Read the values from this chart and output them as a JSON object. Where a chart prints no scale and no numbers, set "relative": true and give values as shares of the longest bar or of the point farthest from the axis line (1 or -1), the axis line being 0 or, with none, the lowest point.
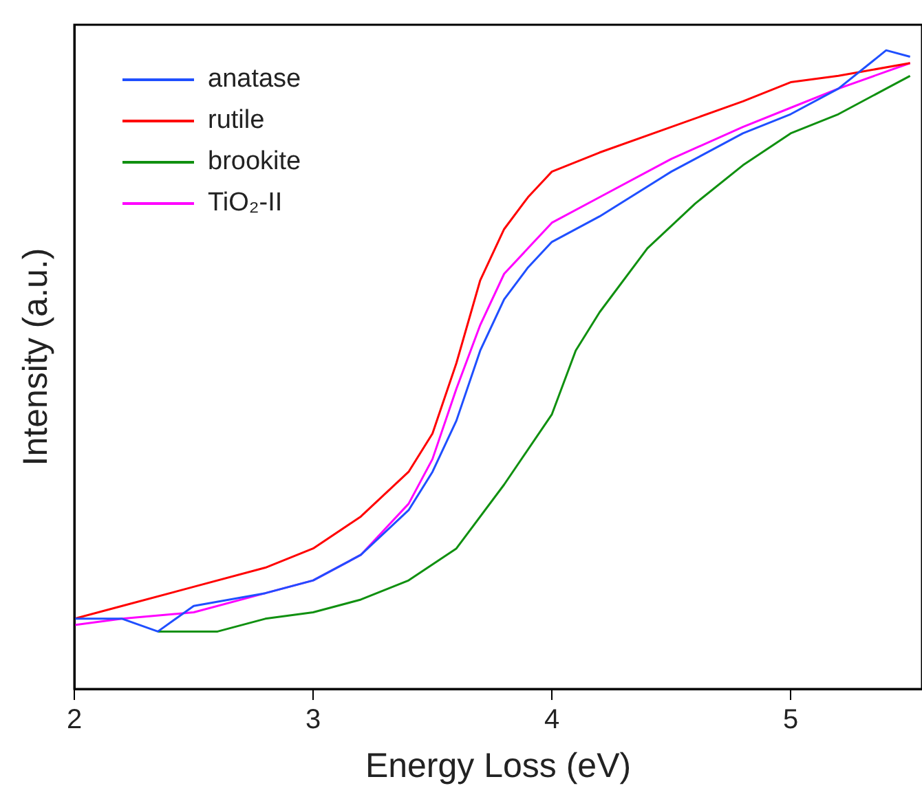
{
  "chart_data": {
    "type": "line",
    "xlabel": "Energy Loss (eV)",
    "ylabel": "Intensity (a.u.)",
    "relative": true,
    "xlim": [
      2,
      5.55
    ],
    "xticks": [
      2,
      3,
      4,
      5
    ],
    "legend": "top left",
    "grid": false,
    "marker": "none",
    "line_style": "solid",
    "series": [
      {
        "name": "anatase",
        "color": "#1f4fff",
        "x": [
          2,
          2.2,
          2.35,
          2.5,
          2.8,
          3,
          3.2,
          3.4,
          3.5,
          3.6,
          3.7,
          3.8,
          3.9,
          4,
          4.2,
          4.5,
          4.8,
          5,
          5.2,
          5.4,
          5.5
        ],
        "values": [
          0.11,
          0.11,
          0.09,
          0.13,
          0.15,
          0.17,
          0.21,
          0.28,
          0.34,
          0.42,
          0.53,
          0.61,
          0.66,
          0.7,
          0.74,
          0.81,
          0.87,
          0.9,
          0.94,
          1,
          0.99
        ]
      },
      {
        "name": "rutile",
        "color": "#ff0000",
        "x": [
          2,
          2.2,
          2.5,
          2.8,
          3,
          3.2,
          3.4,
          3.5,
          3.6,
          3.7,
          3.8,
          3.9,
          4,
          4.2,
          4.5,
          4.8,
          5,
          5.2,
          5.5
        ],
        "values": [
          0.11,
          0.13,
          0.16,
          0.19,
          0.22,
          0.27,
          0.34,
          0.4,
          0.51,
          0.64,
          0.72,
          0.77,
          0.81,
          0.84,
          0.88,
          0.92,
          0.95,
          0.96,
          0.98
        ]
      },
      {
        "name": "brookite",
        "color": "#109010",
        "x": [
          2.35,
          2.6,
          2.8,
          3,
          3.2,
          3.4,
          3.6,
          3.8,
          4,
          4.1,
          4.2,
          4.4,
          4.6,
          4.8,
          5,
          5.2,
          5.4,
          5.5
        ],
        "values": [
          0.09,
          0.09,
          0.11,
          0.12,
          0.14,
          0.17,
          0.22,
          0.32,
          0.43,
          0.53,
          0.59,
          0.69,
          0.76,
          0.82,
          0.87,
          0.9,
          0.94,
          0.96
        ]
      },
      {
        "name": "TiO₂-II",
        "color": "#ff00ff",
        "x": [
          2,
          2.2,
          2.5,
          2.8,
          3,
          3.2,
          3.4,
          3.5,
          3.6,
          3.7,
          3.8,
          3.9,
          4,
          4.2,
          4.5,
          4.8,
          5,
          5.2,
          5.5
        ],
        "values": [
          0.1,
          0.11,
          0.12,
          0.15,
          0.17,
          0.21,
          0.29,
          0.36,
          0.47,
          0.57,
          0.65,
          0.69,
          0.73,
          0.77,
          0.83,
          0.88,
          0.91,
          0.94,
          0.98
        ]
      }
    ]
  }
}
